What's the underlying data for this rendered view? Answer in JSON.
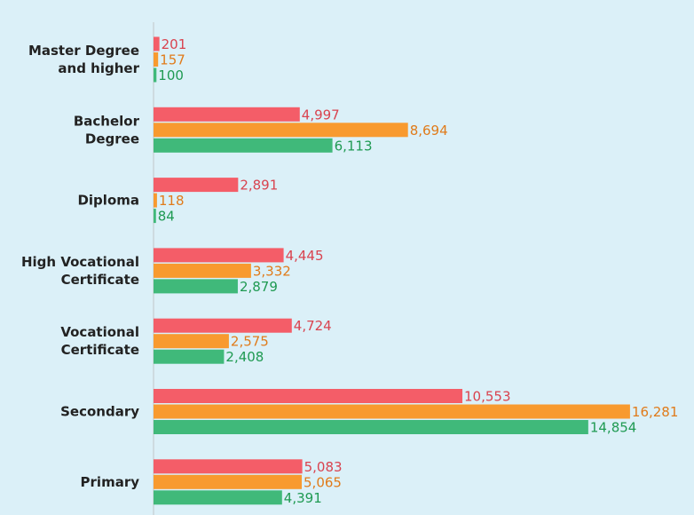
{
  "chart_data": {
    "type": "bar",
    "orientation": "horizontal",
    "categories": [
      [
        "Master Degree",
        "and higher"
      ],
      [
        "Bachelor",
        "Degree"
      ],
      [
        "Diploma"
      ],
      [
        "High Vocational",
        "Certificate"
      ],
      [
        "Vocational",
        "Certificate"
      ],
      [
        "Secondary"
      ],
      [
        "Primary"
      ]
    ],
    "xlim": [
      0,
      17800
    ],
    "series": [
      {
        "color": "#f45d68",
        "label_color": "#d9434f",
        "values": [
          201,
          4997,
          2891,
          4445,
          4724,
          10553,
          5083
        ],
        "value_labels": [
          "201",
          "4,997",
          "2,891",
          "4,445",
          "4,724",
          "10,553",
          "5,083"
        ]
      },
      {
        "color": "#f89a2f",
        "label_color": "#e07b1a",
        "values": [
          157,
          8694,
          118,
          3332,
          2575,
          16281,
          5065
        ],
        "value_labels": [
          "157",
          "8,694",
          "118",
          "3,332",
          "2,575",
          "16,281",
          "5,065"
        ]
      },
      {
        "color": "#40b97a",
        "label_color": "#1f9a52",
        "values": [
          100,
          6113,
          84,
          2879,
          2408,
          14854,
          4391
        ],
        "value_labels": [
          "100",
          "6,113",
          "84",
          "2,879",
          "2,408",
          "14,854",
          "4,391"
        ]
      }
    ]
  }
}
